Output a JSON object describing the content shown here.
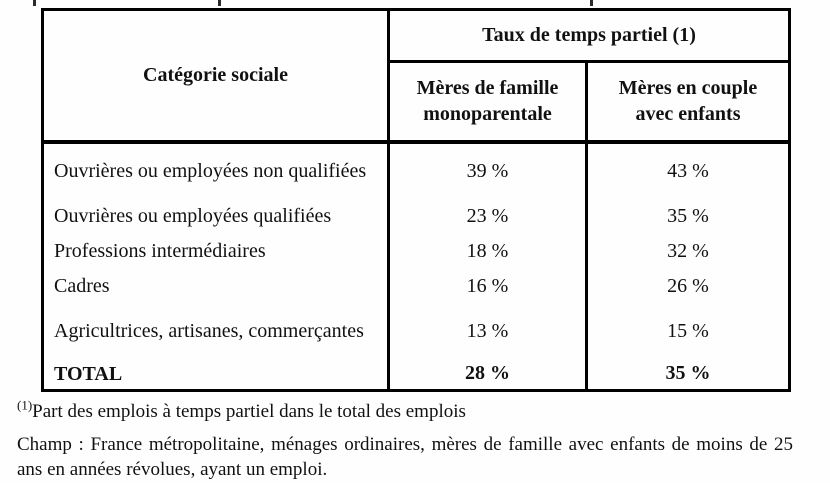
{
  "table": {
    "corner_header": "Catégorie sociale",
    "group_header": "Taux de temps partiel (1)",
    "columns": [
      "Mères de famille monoparentale",
      "Mères en couple avec enfants"
    ],
    "rows": [
      {
        "label": "Ouvrières ou employées non qualifiées",
        "values": [
          "39 %",
          "43 %"
        ]
      },
      {
        "label": "Ouvrières ou employées qualifiées",
        "values": [
          "23 %",
          "35 %"
        ]
      },
      {
        "label": "Professions intermédiaires",
        "values": [
          "18 %",
          "32 %"
        ]
      },
      {
        "label": "Cadres",
        "values": [
          "16 %",
          "26 %"
        ]
      },
      {
        "label": "Agricultrices, artisanes, commerçantes",
        "values": [
          "13 %",
          "15 %"
        ]
      },
      {
        "label": "TOTAL",
        "values": [
          "28 %",
          "35 %"
        ]
      }
    ]
  },
  "footnotes": {
    "marker": "(1)",
    "definition": "Part des emplois à temps partiel dans le total des emplois",
    "champ": "Champ : France métropolitaine, ménages ordinaires, mères de famille avec enfants de moins de 25 ans en années révolues, ayant un emploi."
  },
  "colors": {
    "border": "#000000",
    "text": "#111111",
    "background": "#ffffff"
  },
  "chart_data": {
    "type": "table",
    "title": "Taux de temps partiel (1)",
    "categories": [
      "Ouvrières ou employées non qualifiées",
      "Ouvrières ou employées qualifiées",
      "Professions intermédiaires",
      "Cadres",
      "Agricultrices, artisanes, commerçantes",
      "TOTAL"
    ],
    "series": [
      {
        "name": "Mères de famille monoparentale",
        "values": [
          39,
          23,
          18,
          16,
          13,
          28
        ]
      },
      {
        "name": "Mères en couple avec enfants",
        "values": [
          43,
          35,
          32,
          26,
          15,
          35
        ]
      }
    ],
    "unit": "%"
  }
}
